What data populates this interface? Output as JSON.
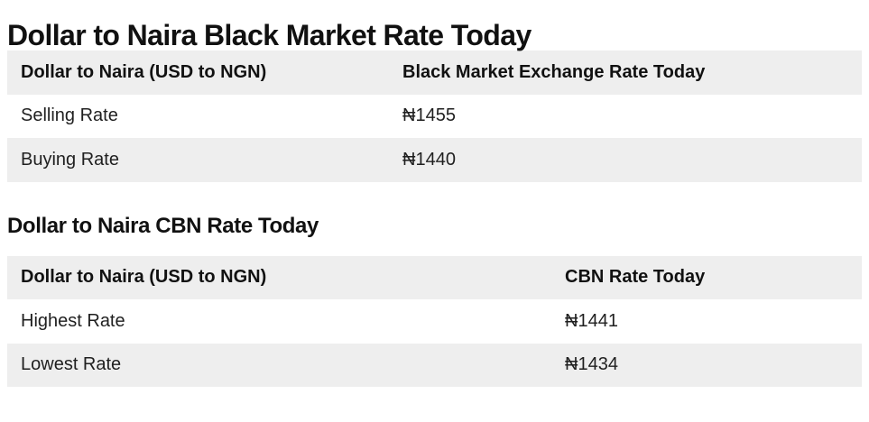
{
  "black_market": {
    "title": "Dollar to Naira Black Market Rate Today",
    "headers": [
      "Dollar to Naira (USD to NGN)",
      "Black Market Exchange Rate Today"
    ],
    "rows": [
      {
        "label": "Selling Rate",
        "value": "₦1455"
      },
      {
        "label": "Buying Rate",
        "value": "₦1440"
      }
    ]
  },
  "cbn": {
    "title": "Dollar to Naira CBN Rate Today",
    "headers": [
      "Dollar to Naira (USD to NGN)",
      "CBN Rate Today"
    ],
    "rows": [
      {
        "label": "Highest Rate",
        "value": "₦1441"
      },
      {
        "label": "Lowest Rate",
        "value": "₦1434"
      }
    ]
  }
}
